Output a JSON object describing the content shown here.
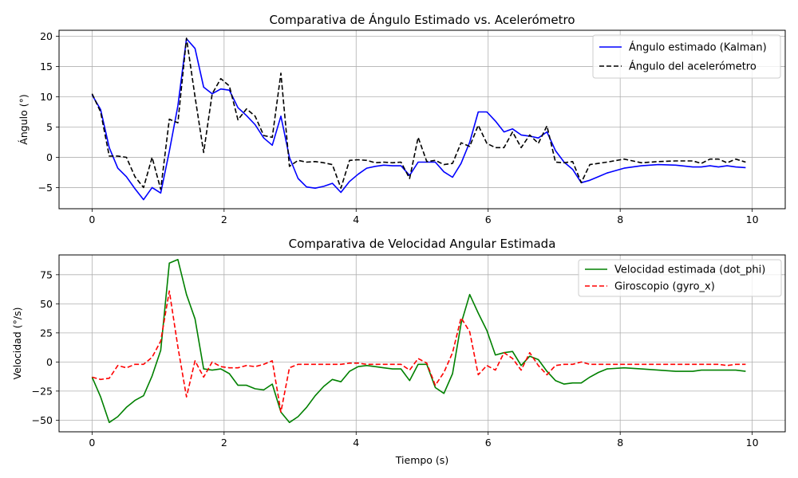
{
  "chart_data": [
    {
      "type": "line",
      "title": "Comparativa de Ángulo Estimado vs. Acelerómetro",
      "xlabel": "",
      "ylabel": "Ángulo (°)",
      "xlim": [
        -0.5,
        10.5
      ],
      "ylim": [
        -8.5,
        21
      ],
      "xticks": [
        0,
        2,
        4,
        6,
        8,
        10
      ],
      "yticks": [
        -5,
        0,
        5,
        10,
        15,
        20
      ],
      "grid": true,
      "legend_position": "top-right",
      "series": [
        {
          "name": "Ángulo estimado (Kalman)",
          "color": "#0000ff",
          "dash": "solid",
          "x": [
            0,
            0.13,
            0.26,
            0.39,
            0.52,
            0.65,
            0.78,
            0.91,
            1.04,
            1.17,
            1.3,
            1.43,
            1.56,
            1.69,
            1.82,
            1.95,
            2.08,
            2.21,
            2.34,
            2.47,
            2.6,
            2.73,
            2.86,
            2.99,
            3.12,
            3.25,
            3.38,
            3.51,
            3.64,
            3.77,
            3.9,
            4.03,
            4.16,
            4.29,
            4.42,
            4.55,
            4.68,
            4.81,
            4.94,
            5.07,
            5.2,
            5.33,
            5.46,
            5.59,
            5.72,
            5.85,
            5.98,
            6.11,
            6.24,
            6.37,
            6.5,
            6.63,
            6.76,
            6.89,
            7.02,
            7.15,
            7.28,
            7.41,
            7.54,
            7.67,
            7.8,
            8.06,
            8.32,
            8.58,
            8.84,
            9.1,
            9.23,
            9.36,
            9.49,
            9.62,
            9.75,
            9.9
          ],
          "y": [
            10.3,
            7.9,
            1.6,
            -1.8,
            -3.2,
            -5.2,
            -7.0,
            -5.0,
            -5.9,
            1.0,
            8.5,
            19.6,
            18.0,
            11.6,
            10.5,
            11.3,
            11.1,
            8.2,
            6.9,
            5.4,
            3.2,
            2.0,
            6.8,
            0.0,
            -3.5,
            -4.9,
            -5.1,
            -4.8,
            -4.3,
            -5.8,
            -4.0,
            -2.8,
            -1.8,
            -1.5,
            -1.3,
            -1.4,
            -1.4,
            -3.0,
            -0.8,
            -0.8,
            -0.8,
            -2.4,
            -3.3,
            -1.0,
            2.5,
            7.5,
            7.5,
            6.0,
            4.2,
            4.7,
            3.7,
            3.5,
            3.2,
            4.2,
            1.1,
            -0.8,
            -2.0,
            -4.2,
            -3.8,
            -3.2,
            -2.6,
            -1.8,
            -1.4,
            -1.2,
            -1.3,
            -1.6,
            -1.6,
            -1.4,
            -1.6,
            -1.4,
            -1.6,
            -1.7
          ]
        },
        {
          "name": "Ángulo del acelerómetro",
          "color": "#000000",
          "dash": "dashed",
          "x": [
            0,
            0.13,
            0.26,
            0.39,
            0.52,
            0.65,
            0.78,
            0.91,
            1.04,
            1.17,
            1.3,
            1.43,
            1.56,
            1.69,
            1.82,
            1.95,
            2.08,
            2.21,
            2.34,
            2.47,
            2.6,
            2.73,
            2.86,
            2.99,
            3.12,
            3.25,
            3.38,
            3.51,
            3.64,
            3.77,
            3.9,
            4.03,
            4.16,
            4.29,
            4.42,
            4.55,
            4.68,
            4.81,
            4.94,
            5.07,
            5.2,
            5.33,
            5.46,
            5.59,
            5.72,
            5.85,
            5.98,
            6.11,
            6.24,
            6.37,
            6.5,
            6.63,
            6.76,
            6.89,
            7.02,
            7.15,
            7.28,
            7.41,
            7.54,
            7.67,
            7.8,
            8.06,
            8.32,
            8.58,
            8.84,
            9.1,
            9.23,
            9.36,
            9.49,
            9.62,
            9.75,
            9.9
          ],
          "y": [
            10.5,
            7.5,
            0.2,
            0.2,
            0.0,
            -3.2,
            -5.0,
            0.0,
            -5.3,
            6.3,
            5.7,
            19.7,
            10.0,
            0.8,
            10.5,
            13.0,
            11.8,
            6.2,
            8.0,
            6.8,
            3.6,
            3.3,
            13.9,
            -1.5,
            -0.5,
            -0.8,
            -0.7,
            -0.9,
            -1.2,
            -5.1,
            -0.5,
            -0.4,
            -0.5,
            -0.9,
            -0.8,
            -0.9,
            -0.8,
            -3.5,
            3.3,
            -0.7,
            -0.5,
            -1.2,
            -1.0,
            2.4,
            1.8,
            5.3,
            2.3,
            1.6,
            1.6,
            4.2,
            1.6,
            3.7,
            2.3,
            5.2,
            -0.8,
            -0.9,
            -0.7,
            -4.2,
            -1.2,
            -1.0,
            -0.8,
            -0.3,
            -0.9,
            -0.7,
            -0.6,
            -0.6,
            -1.0,
            -0.3,
            -0.3,
            -0.9,
            -0.3,
            -0.8
          ]
        }
      ]
    },
    {
      "type": "line",
      "title": "Comparativa de Velocidad Angular Estimada",
      "xlabel": "Tiempo (s)",
      "ylabel": "Velocidad (°/s)",
      "xlim": [
        -0.5,
        10.5
      ],
      "ylim": [
        -60,
        92
      ],
      "xticks": [
        0,
        2,
        4,
        6,
        8,
        10
      ],
      "yticks": [
        -50,
        -25,
        0,
        25,
        50,
        75
      ],
      "grid": true,
      "legend_position": "top-right",
      "series": [
        {
          "name": "Velocidad estimada (dot_phi)",
          "color": "#008000",
          "dash": "solid",
          "x": [
            0,
            0.13,
            0.26,
            0.39,
            0.52,
            0.65,
            0.78,
            0.91,
            1.04,
            1.17,
            1.3,
            1.43,
            1.56,
            1.69,
            1.82,
            1.95,
            2.08,
            2.21,
            2.34,
            2.47,
            2.6,
            2.73,
            2.86,
            2.99,
            3.12,
            3.25,
            3.38,
            3.51,
            3.64,
            3.77,
            3.9,
            4.03,
            4.16,
            4.29,
            4.42,
            4.55,
            4.68,
            4.81,
            4.94,
            5.07,
            5.2,
            5.33,
            5.46,
            5.59,
            5.72,
            5.85,
            5.98,
            6.11,
            6.24,
            6.37,
            6.5,
            6.63,
            6.76,
            6.89,
            7.02,
            7.15,
            7.28,
            7.41,
            7.54,
            7.67,
            7.8,
            8.06,
            8.32,
            8.58,
            8.84,
            9.1,
            9.23,
            9.36,
            9.49,
            9.62,
            9.75,
            9.9
          ],
          "y": [
            -13,
            -30,
            -52,
            -47,
            -39,
            -33,
            -29,
            -12,
            10,
            85,
            88,
            58,
            37,
            -6,
            -7,
            -6,
            -10,
            -20,
            -20,
            -23,
            -24,
            -19,
            -43,
            -52,
            -47,
            -39,
            -29,
            -21,
            -15,
            -17,
            -8,
            -4,
            -3,
            -4,
            -5,
            -6,
            -6,
            -16,
            -2,
            -2,
            -22,
            -27,
            -10,
            33,
            58,
            42,
            27,
            6,
            8,
            9,
            -3,
            5,
            2,
            -8,
            -16,
            -19,
            -18,
            -18,
            -13,
            -9,
            -6,
            -5,
            -6,
            -7,
            -8,
            -8,
            -7,
            -7,
            -7,
            -7,
            -7,
            -8
          ]
        },
        {
          "name": "Giroscopio (gyro_x)",
          "color": "#ff0000",
          "dash": "dashed",
          "x": [
            0,
            0.13,
            0.26,
            0.39,
            0.52,
            0.65,
            0.78,
            0.91,
            1.04,
            1.17,
            1.3,
            1.43,
            1.56,
            1.69,
            1.82,
            1.95,
            2.08,
            2.21,
            2.34,
            2.47,
            2.6,
            2.73,
            2.86,
            2.99,
            3.12,
            3.25,
            3.38,
            3.51,
            3.64,
            3.77,
            3.9,
            4.03,
            4.16,
            4.29,
            4.42,
            4.55,
            4.68,
            4.81,
            4.94,
            5.07,
            5.2,
            5.33,
            5.46,
            5.59,
            5.72,
            5.85,
            5.98,
            6.11,
            6.24,
            6.37,
            6.5,
            6.63,
            6.76,
            6.89,
            7.02,
            7.15,
            7.28,
            7.41,
            7.54,
            7.67,
            7.8,
            8.06,
            8.32,
            8.58,
            8.84,
            9.1,
            9.23,
            9.36,
            9.49,
            9.62,
            9.75,
            9.9
          ],
          "y": [
            -13,
            -15,
            -14,
            -3,
            -5,
            -2,
            -2,
            4,
            18,
            61,
            13,
            -30,
            1,
            -13,
            0,
            -4,
            -5,
            -5,
            -3,
            -4,
            -2,
            1,
            -43,
            -5,
            -2,
            -2,
            -2,
            -2,
            -2,
            -2,
            -1,
            -1,
            -2,
            -2,
            -2,
            -2,
            -2,
            -7,
            3,
            -1,
            -20,
            -9,
            8,
            38,
            26,
            -11,
            -3,
            -7,
            8,
            3,
            -7,
            8,
            -3,
            -11,
            -3,
            -2,
            -2,
            0,
            -2,
            -2,
            -2,
            -2,
            -2,
            -2,
            -2,
            -2,
            -2,
            -2,
            -2,
            -3,
            -2,
            -2
          ]
        }
      ]
    }
  ]
}
